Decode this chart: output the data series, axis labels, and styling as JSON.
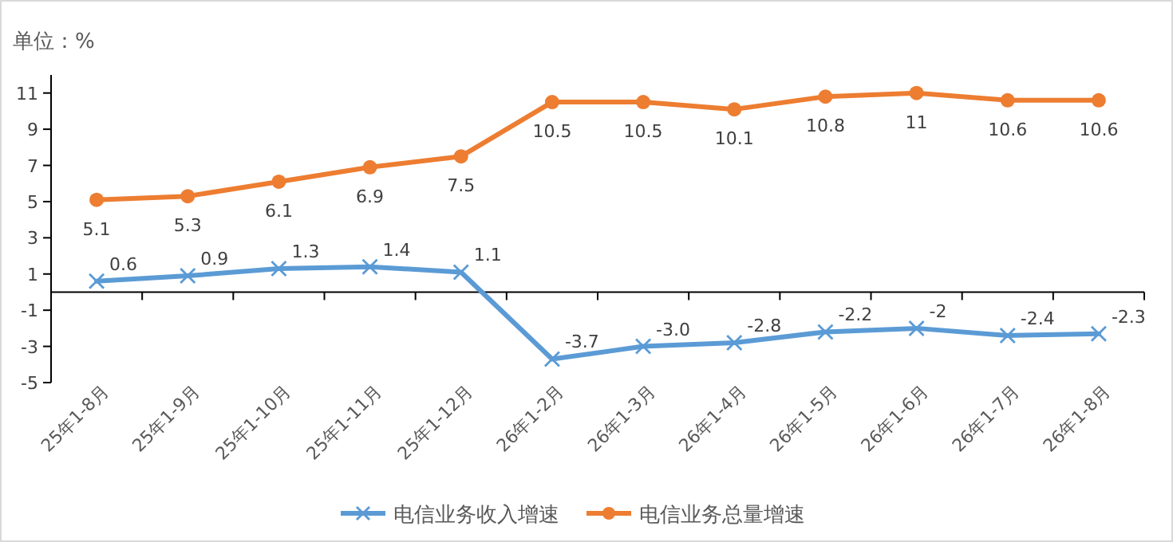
{
  "chart_data": {
    "type": "line",
    "ylabel": "单位：%",
    "categories": [
      "25年1-8月",
      "25年1-9月",
      "25年1-10月",
      "25年1-11月",
      "25年1-12月",
      "26年1-2月",
      "26年1-3月",
      "26年1-4月",
      "26年1-5月",
      "26年1-6月",
      "26年1-7月",
      "26年1-8月"
    ],
    "series": [
      {
        "name": "电信业务收入增速",
        "color": "#5b9bd5",
        "marker": "cross",
        "values": [
          0.6,
          0.9,
          1.3,
          1.4,
          1.1,
          -3.7,
          -3.0,
          -2.8,
          -2.2,
          -2,
          -2.4,
          -2.3
        ],
        "value_labels": [
          "0.6",
          "0.9",
          "1.3",
          "1.4",
          "1.1",
          "-3.7",
          "-3.0",
          "-2.8",
          "-2.2",
          "-2",
          "-2.4",
          "-2.3"
        ]
      },
      {
        "name": "电信业务总量增速",
        "color": "#ed7d31",
        "marker": "circle",
        "values": [
          5.1,
          5.3,
          6.1,
          6.9,
          7.5,
          10.5,
          10.5,
          10.1,
          10.8,
          11,
          10.6,
          10.6
        ],
        "value_labels": [
          "5.1",
          "5.3",
          "6.1",
          "6.9",
          "7.5",
          "10.5",
          "10.5",
          "10.1",
          "10.8",
          "11",
          "10.6",
          "10.6"
        ]
      }
    ],
    "ylim": [
      -5,
      12
    ],
    "yticks": [
      -5,
      -3,
      -1,
      1,
      3,
      5,
      7,
      9,
      11
    ],
    "legend": "bottom",
    "line_style": "solid"
  }
}
